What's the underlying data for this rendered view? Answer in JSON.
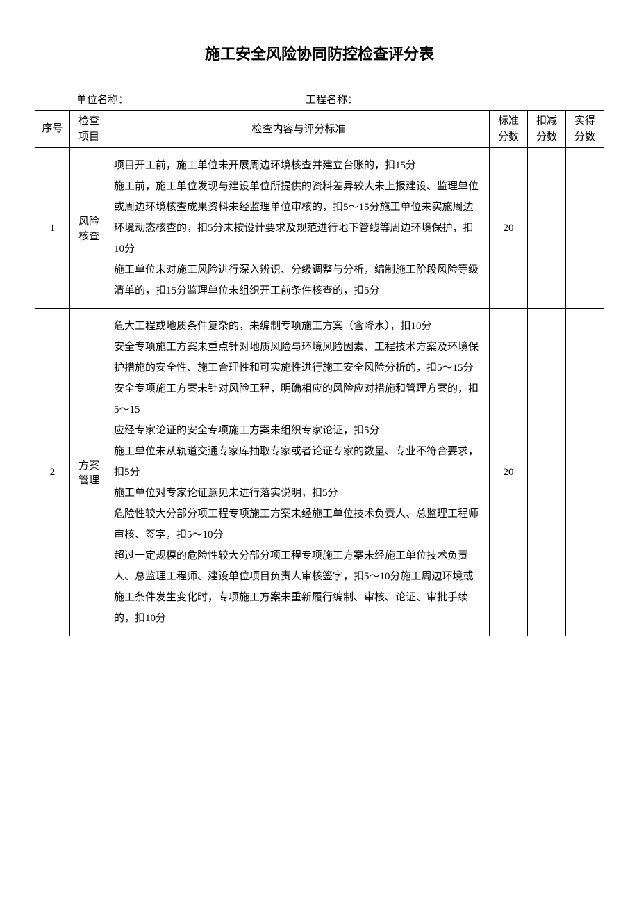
{
  "title": "施工安全风险协同防控检查评分表",
  "header": {
    "unit_label": "单位名称：",
    "project_label": "工程名称："
  },
  "table": {
    "columns": {
      "seq": "序号",
      "item": "检查项目",
      "content": "检查内容与评分标准",
      "standard_score": "标准分数",
      "deduct": "扣减分数",
      "actual": "实得分数"
    },
    "rows": [
      {
        "seq": "1",
        "item": "风险核查",
        "content": "项目开工前，施工单位未开展周边环境核查并建立台账的，扣15分\n施工前，施工单位发现与建设单位所提供的资料差异较大未上报建设、监理单位或周边环境核查成果资料未经监理单位审核的，扣5～15分施工单位未实施周边环境动态核查的，扣5分未按设计要求及规范进行地下管线等周边环境保护，扣10分\n施工单位未对施工风险进行深入辨识、分级调整与分析，编制施工阶段风险等级清单的，扣15分监理单位未组织开工前条件核查的，扣5分",
        "standard_score": "20",
        "deduct": "",
        "actual": ""
      },
      {
        "seq": "2",
        "item": "方案管理",
        "content": "危大工程或地质条件复杂的，未编制专项施工方案（含降水），扣10分\n安全专项施工方案未重点针对地质风险与环境风险因素、工程技术方案及环境保护措施的安全性、施工合理性和可实施性进行施工安全风险分析的，扣5～15分\n安全专项施工方案未针对风险工程，明确相应的风险应对措施和管理方案的，扣5～15\n应经专家论证的安全专项施工方案未组织专家论证，扣5分\n施工单位未从轨道交通专家库抽取专家或者论证专家的数量、专业不符合要求，扣5分\n施工单位对专家论证意见未进行落实说明，扣5分\n危险性较大分部分项工程专项施工方案未经施工单位技术负责人、总监理工程师审核、签字，扣5～10分\n超过一定规模的危险性较大分部分项工程专项施工方案未经施工单位技术负责人、总监理工程师、建设单位项目负责人审核签字，扣5～10分施工周边环境或施工条件发生变化时，专项施工方案未重新履行编制、审核、论证、审批手续的，扣10分",
        "standard_score": "20",
        "deduct": "",
        "actual": ""
      }
    ]
  }
}
